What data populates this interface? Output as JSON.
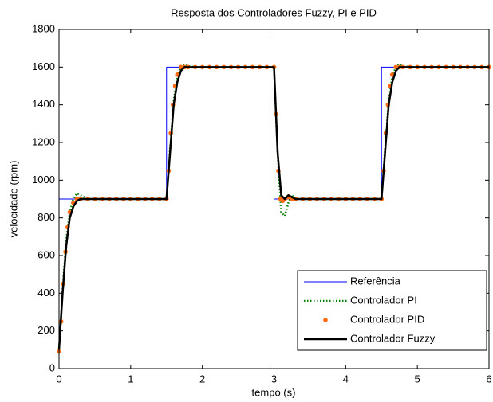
{
  "chart_data": {
    "type": "line",
    "title": "Resposta dos Controladores Fuzzy, PI e PID",
    "x_label": "tempo (s)",
    "y_label": "velocidade (rpm)",
    "xlim": [
      0,
      6
    ],
    "ylim": [
      0,
      1800
    ],
    "xticks": [
      0,
      1,
      2,
      3,
      4,
      5,
      6
    ],
    "yticks": [
      0,
      200,
      400,
      600,
      800,
      1000,
      1200,
      1400,
      1600,
      1800
    ],
    "grid": false,
    "legend": "lower right",
    "series": [
      {
        "name": "Referência",
        "color": "#0000ff",
        "style": "solid",
        "width": 1,
        "x": [
          0,
          1.5,
          1.5,
          3,
          3,
          4.5,
          4.5,
          6
        ],
        "values": [
          900,
          900,
          1600,
          1600,
          900,
          900,
          1600,
          1600
        ]
      },
      {
        "name": "Controlador PI",
        "color": "#008000",
        "style": "dotted",
        "width": 2.5,
        "x": [
          0,
          0.05,
          0.1,
          0.15,
          0.2,
          0.25,
          0.3,
          0.4,
          1.5,
          1.55,
          1.6,
          1.65,
          1.7,
          1.75,
          1.8,
          1.9,
          3.0,
          3.05,
          3.1,
          3.15,
          3.2,
          3.25,
          3.3,
          4.5,
          4.55,
          4.6,
          4.65,
          4.7,
          4.75,
          4.8,
          4.9,
          6.0
        ],
        "values": [
          100,
          420,
          680,
          830,
          900,
          930,
          920,
          900,
          900,
          1170,
          1420,
          1550,
          1600,
          1615,
          1605,
          1600,
          1600,
          1150,
          830,
          810,
          880,
          920,
          900,
          900,
          1170,
          1420,
          1550,
          1600,
          1615,
          1605,
          1600,
          1600
        ]
      },
      {
        "name": "Controlador PID",
        "color": "#ff6a13",
        "style": "marker",
        "width": 1,
        "x": [
          0,
          0.03,
          0.06,
          0.09,
          0.12,
          0.15,
          0.2,
          0.25,
          0.3,
          0.4,
          0.5,
          0.6,
          0.7,
          0.8,
          0.9,
          1.0,
          1.1,
          1.2,
          1.3,
          1.4,
          1.5,
          1.53,
          1.56,
          1.59,
          1.62,
          1.65,
          1.7,
          1.75,
          1.8,
          1.9,
          2.0,
          2.1,
          2.2,
          2.3,
          2.4,
          2.5,
          2.6,
          2.7,
          2.8,
          2.9,
          3.0,
          3.03,
          3.06,
          3.09,
          3.12,
          3.15,
          3.2,
          3.25,
          3.3,
          3.4,
          3.5,
          3.6,
          3.7,
          3.8,
          3.9,
          4.0,
          4.1,
          4.2,
          4.3,
          4.4,
          4.5,
          4.53,
          4.56,
          4.59,
          4.62,
          4.65,
          4.7,
          4.75,
          4.8,
          4.9,
          5.0,
          5.1,
          5.2,
          5.3,
          5.4,
          5.5,
          5.6,
          5.7,
          5.8,
          5.9,
          6.0
        ],
        "values": [
          90,
          250,
          450,
          620,
          750,
          830,
          880,
          900,
          900,
          900,
          900,
          900,
          900,
          900,
          900,
          900,
          900,
          900,
          900,
          900,
          900,
          1050,
          1250,
          1400,
          1500,
          1560,
          1600,
          1600,
          1600,
          1600,
          1600,
          1600,
          1600,
          1600,
          1600,
          1600,
          1600,
          1600,
          1600,
          1600,
          1600,
          1350,
          1050,
          900,
          890,
          900,
          910,
          900,
          900,
          900,
          900,
          900,
          900,
          900,
          900,
          900,
          900,
          900,
          900,
          900,
          900,
          1050,
          1250,
          1400,
          1500,
          1560,
          1600,
          1600,
          1600,
          1600,
          1600,
          1600,
          1600,
          1600,
          1600,
          1600,
          1600,
          1600,
          1600,
          1600,
          1600
        ]
      },
      {
        "name": "Controlador Fuzzy",
        "color": "#000000",
        "style": "solid",
        "width": 2.5,
        "x": [
          0,
          0.05,
          0.1,
          0.15,
          0.2,
          0.25,
          0.3,
          0.4,
          1.5,
          1.55,
          1.6,
          1.65,
          1.7,
          1.75,
          1.8,
          1.9,
          3.0,
          3.05,
          3.1,
          3.15,
          3.2,
          3.3,
          4.5,
          4.55,
          4.6,
          4.65,
          4.7,
          4.75,
          4.8,
          4.9,
          6.0
        ],
        "values": [
          100,
          400,
          650,
          800,
          860,
          890,
          900,
          900,
          900,
          1150,
          1400,
          1520,
          1580,
          1600,
          1600,
          1600,
          1600,
          1150,
          920,
          900,
          920,
          900,
          900,
          1150,
          1400,
          1520,
          1580,
          1600,
          1600,
          1600,
          1600
        ]
      }
    ]
  }
}
